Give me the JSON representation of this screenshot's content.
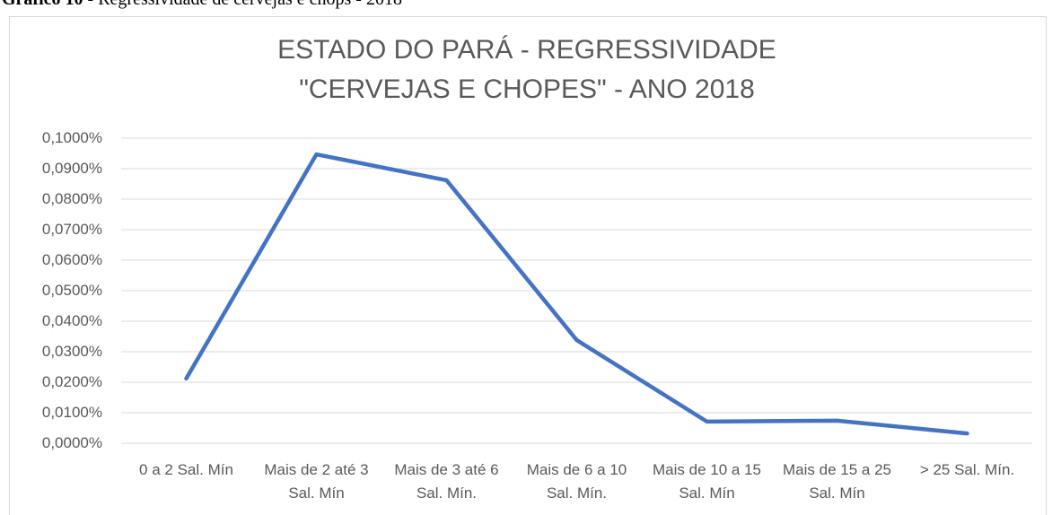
{
  "caption_label": "Gráfico 10",
  "caption_text": "- Regressividade de cervejas e chops - 2018",
  "chart_data": {
    "type": "line",
    "title": "ESTADO DO PARÁ - REGRESSIVIDADE \"CERVEJAS E CHOPES\" - ANO 2018",
    "categories": [
      "0 a 2 Sal. Mín",
      "Mais de 2 até 3 Sal. Mín",
      "Mais de 3 até 6 Sal. Mín.",
      "Mais de 6 a 10 Sal. Mín.",
      "Mais de 10 a 15 Sal. Mín",
      "Mais de 15 a 25 Sal. Mín",
      "> 25 Sal. Mín."
    ],
    "values": [
      0.0212,
      0.0947,
      0.0862,
      0.0338,
      0.0071,
      0.0074,
      0.0032
    ],
    "color": "#4472c4",
    "ylim": [
      0,
      0.1
    ],
    "yticks": [
      {
        "value": 0,
        "label": "0,0000%"
      },
      {
        "value": 0.01,
        "label": "0,0100%"
      },
      {
        "value": 0.02,
        "label": "0,0200%"
      },
      {
        "value": 0.03,
        "label": "0,0300%"
      },
      {
        "value": 0.04,
        "label": "0,0400%"
      },
      {
        "value": 0.05,
        "label": "0,0500%"
      },
      {
        "value": 0.06,
        "label": "0,0600%"
      },
      {
        "value": 0.07,
        "label": "0,0700%"
      },
      {
        "value": 0.08,
        "label": "0,0800%"
      },
      {
        "value": 0.09,
        "label": "0,0900%"
      },
      {
        "value": 0.1,
        "label": "0,1000%"
      }
    ],
    "grid": true
  }
}
